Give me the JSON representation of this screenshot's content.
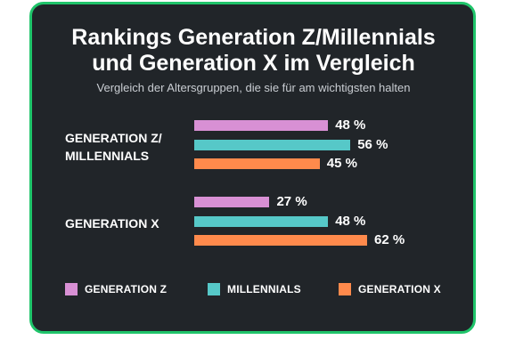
{
  "chart_data": {
    "type": "bar",
    "orientation": "horizontal",
    "title": "Rankings Generation Z/Millennials und Generation X im Vergleich",
    "title_lines": [
      "Rankings Generation Z/Millennials",
      "und Generation X im Vergleich"
    ],
    "subtitle": "Vergleich der Altersgruppen, die sie für am wichtigsten halten",
    "categories": [
      "GENERATION Z/ MILLENNIALS",
      "GENERATION X"
    ],
    "category_lines": [
      [
        "GENERATION Z/",
        "MILLENNIALS"
      ],
      [
        "GENERATION X"
      ]
    ],
    "series": [
      {
        "name": "GENERATION Z",
        "color": "#d890d4",
        "values": [
          48,
          27
        ],
        "labels": [
          "48 %",
          "27 %"
        ]
      },
      {
        "name": "MILLENNIALS",
        "color": "#56c8c8",
        "values": [
          56,
          48
        ],
        "labels": [
          "56 %",
          "48 %"
        ]
      },
      {
        "name": "GENERATION X",
        "color": "#ff8a4c",
        "values": [
          45,
          62
        ],
        "labels": [
          "45 %",
          "62 %"
        ]
      }
    ],
    "xlim": [
      0,
      62
    ],
    "grid": false,
    "legend_position": "bottom"
  },
  "style": {
    "card_background": "#212529",
    "card_border": "#1fc46a",
    "text_color": "#ffffff"
  }
}
